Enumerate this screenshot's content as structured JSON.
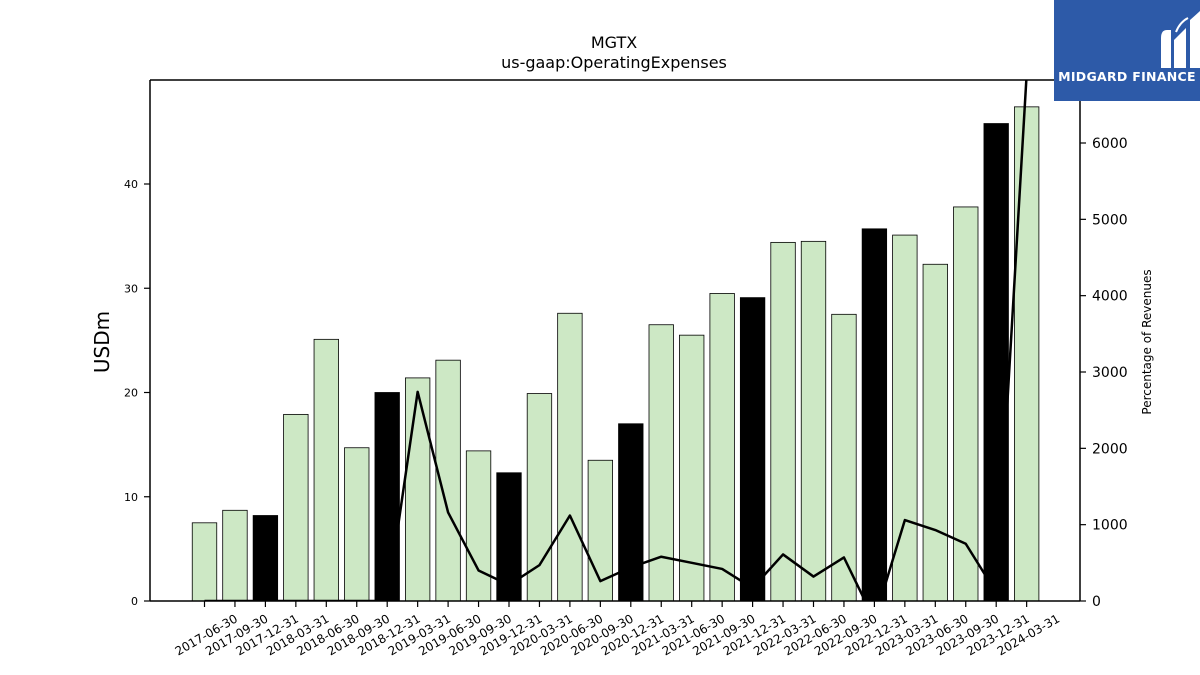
{
  "brand": {
    "name": "MIDGARD FINANCE",
    "bg_color": "#2d5aa8"
  },
  "chart_data": {
    "type": "bar",
    "title": "MGTX",
    "subtitle": "us-gaap:OperatingExpenses",
    "ylabel": "USDm",
    "ylabel_right": "Percentage of Revenues",
    "ylim": [
      0,
      50
    ],
    "ylim_right": [
      0,
      6800
    ],
    "yticks": [
      0,
      10,
      20,
      30,
      40
    ],
    "yticks_right": [
      0,
      1000,
      2000,
      3000,
      4000,
      5000,
      6000
    ],
    "grid": false,
    "colors": {
      "quarter_bar": "#cde8c5",
      "year_end_bar": "#000000",
      "line": "#000000"
    },
    "categories": [
      "2017-06-30",
      "2017-09-30",
      "2017-12-31",
      "2018-03-31",
      "2018-06-30",
      "2018-09-30",
      "2018-12-31",
      "2019-03-31",
      "2019-06-30",
      "2019-09-30",
      "2019-12-31",
      "2020-03-31",
      "2020-06-30",
      "2020-09-30",
      "2020-12-31",
      "2021-03-31",
      "2021-06-30",
      "2021-09-30",
      "2021-12-31",
      "2022-03-31",
      "2022-06-30",
      "2022-09-30",
      "2022-12-31",
      "2023-03-31",
      "2023-06-30",
      "2023-09-30",
      "2023-12-31",
      "2024-03-31"
    ],
    "series": [
      {
        "type": "bar",
        "values": [
          7.5,
          8.7,
          8.2,
          17.9,
          25.1,
          14.7,
          20.0,
          21.4,
          23.1,
          14.4,
          12.3,
          19.9,
          27.6,
          13.5,
          17.0,
          26.5,
          25.5,
          29.5,
          29.1,
          34.4,
          34.5,
          27.5,
          35.7,
          35.1,
          32.3,
          37.8,
          45.8,
          47.4
        ]
      },
      {
        "type": "line",
        "axis": "right",
        "values": [
          0,
          0,
          0,
          0,
          0,
          0,
          0,
          2740,
          1160,
          400,
          210,
          470,
          1120,
          260,
          440,
          580,
          500,
          420,
          170,
          610,
          320,
          570,
          -250,
          1060,
          930,
          750,
          110,
          6900
        ]
      }
    ]
  }
}
